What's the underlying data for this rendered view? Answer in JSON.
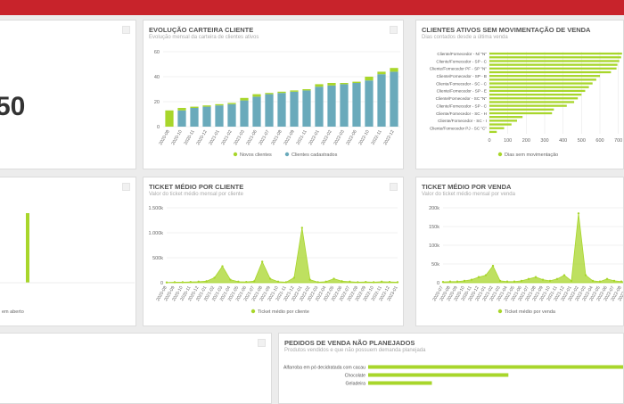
{
  "panels": {
    "kpi": {
      "value": 50
    },
    "carteira": {
      "title": "EVOLUÇÃO CARTEIRA CLIENTE",
      "subtitle": "Evolução mensal da carteira de clientes ativos",
      "chart_data": {
        "type": "stacked-bar",
        "categories": [
          "2020-08",
          "2020-10",
          "2020-11",
          "2020-12",
          "2021-01",
          "2021-02",
          "2021-03",
          "2021-06",
          "2021-07",
          "2021-08",
          "2021-09",
          "2021-11",
          "2022-01",
          "2022-02",
          "2022-03",
          "2022-06",
          "2022-10",
          "2022-11",
          "2022-12"
        ],
        "series": [
          {
            "name": "Novos clientes",
            "color": "#a8d62b",
            "values": [
              13,
              2,
              1,
              1,
              1,
              1,
              2,
              2,
              1,
              1,
              1,
              1,
              2,
              2,
              1,
              1,
              3,
              2,
              3
            ]
          },
          {
            "name": "Clientes cadastrados",
            "color": "#6aaabb",
            "values": [
              0,
              13,
              15,
              16,
              17,
              18,
              21,
              24,
              26,
              27,
              28,
              29,
              32,
              33,
              34,
              35,
              37,
              42,
              44
            ]
          }
        ],
        "ylim": [
          0,
          60
        ],
        "yticks": [
          0,
          20,
          40,
          60
        ],
        "grid": true
      }
    },
    "sem_mov": {
      "title": "CLIENTES ATIVOS SEM MOVIMENTAÇÃO DE VENDA",
      "subtitle": "Dias contados desde a última venda",
      "chart_data": {
        "type": "hbar",
        "categories": [
          "Cliente/Fornecedor - N/ \"N\"",
          null,
          "Cliente/Fornecedor - SP - C",
          null,
          "Cliente/Fornecedor PF - SP \"N\"",
          null,
          "Cliente/Fornecedor - SP - B",
          null,
          "Cliente/Fornecedor - SC - C",
          null,
          "Cliente/Fornecedor - SP - E",
          null,
          "Cliente/Fornecedor - SC \"N\"",
          null,
          "Cliente/Fornecedor - SP - C",
          null,
          "Cliente/Fornecedor - SC - H",
          null,
          "Cliente/Fornecedor - SC - I",
          null,
          "Cliente/Fornecedor PJ - SC \"C\"",
          null
        ],
        "series": [
          {
            "name": "Dias sem movimentação",
            "color": "#a8d62b",
            "values": [
              720,
              715,
              705,
              695,
              690,
              660,
              600,
              580,
              560,
              540,
              520,
              500,
              480,
              460,
              420,
              350,
              340,
              180,
              150,
              120,
              80,
              40
            ]
          }
        ],
        "xlim": [
          0,
          750
        ],
        "xticks": [
          0,
          100,
          200,
          300,
          400,
          500,
          600,
          700
        ],
        "grid": true
      }
    },
    "aberto": {
      "chart_data": {
        "type": "bar",
        "series": [
          {
            "name": "em aberto",
            "color": "#a8d62b",
            "values": [
              1
            ]
          }
        ]
      }
    },
    "ticket_cliente": {
      "title": "TICKET MÉDIO POR CLIENTE",
      "subtitle": "Valor do ticket médio mensal por cliente",
      "chart_data": {
        "type": "area",
        "categories": [
          "2020-08",
          "2020-09",
          "2020-10",
          "2020-11",
          "2020-12",
          "2021-01",
          "2021-02",
          "2021-03",
          "2021-04",
          "2021-05",
          "2021-06",
          "2021-07",
          "2021-08",
          "2021-09",
          "2021-10",
          "2021-11",
          "2021-12",
          "2022-01",
          "2022-02",
          "2022-03",
          "2022-04",
          "2022-05",
          "2022-06",
          "2022-07",
          "2022-08",
          "2022-09",
          "2022-10",
          "2022-11",
          "2022-12",
          "2023-01"
        ],
        "series": [
          {
            "name": "Ticket médio por cliente",
            "color": "#a8d62b",
            "values": [
              5000,
              10000,
              10000,
              15000,
              20000,
              30000,
              100000,
              330000,
              60000,
              20000,
              15000,
              30000,
              420000,
              80000,
              20000,
              10000,
              100000,
              1100000,
              60000,
              10000,
              20000,
              80000,
              30000,
              20000,
              10000,
              15000,
              10000,
              20000,
              15000,
              10000
            ]
          }
        ],
        "ylim": [
          0,
          1500000
        ],
        "yticks": [
          0,
          {
            "value": 500000,
            "label": "500k"
          },
          {
            "value": 1000000,
            "label": "1.000k"
          },
          {
            "value": 1500000,
            "label": "1.500k"
          }
        ],
        "grid": true
      }
    },
    "ticket_venda": {
      "title": "TICKET MÉDIO POR VENDA",
      "subtitle": "Valor do ticket médio mensal por venda",
      "chart_data": {
        "type": "area",
        "categories": [
          "2020-07",
          "2020-08",
          "2020-09",
          "2020-10",
          "2020-11",
          "2020-12",
          "2021-01",
          "2021-02",
          "2021-03",
          "2021-04",
          "2021-05",
          "2021-06",
          "2021-07",
          "2021-08",
          "2021-09",
          "2021-10",
          "2021-11",
          "2021-12",
          "2022-01",
          "2022-02",
          "2022-03",
          "2022-04",
          "2022-05",
          "2022-06",
          "2022-07",
          "2022-08",
          "2022-09",
          "2022-10",
          "2022-11",
          "2022-12"
        ],
        "series": [
          {
            "name": "Ticket médio por venda",
            "color": "#a8d62b",
            "values": [
              2000,
              3000,
              3000,
              5000,
              8000,
              15000,
              20000,
              45000,
              5000,
              3000,
              3000,
              5000,
              10000,
              15000,
              8000,
              5000,
              10000,
              20000,
              5000,
              185000,
              20000,
              5000,
              3000,
              10000,
              5000,
              3000,
              2000,
              3000,
              5000,
              2000
            ]
          }
        ],
        "ylim": [
          0,
          200000
        ],
        "yticks": [
          0,
          {
            "value": 50000,
            "label": "50k"
          },
          {
            "value": 100000,
            "label": "100k"
          },
          {
            "value": 150000,
            "label": "150k"
          },
          {
            "value": 200000,
            "label": "200k"
          }
        ],
        "grid": true
      }
    },
    "pedidos": {
      "title": "PEDIDOS DE VENDA NÃO PLANEJADOS",
      "subtitle": "Produtos vendidos e que não possuem demanda planejada",
      "chart_data": {
        "type": "hbar",
        "categories": [
          "Alfarroba em pó decidratada com cacau",
          "Chocolate",
          "Geladeira"
        ],
        "series": [
          {
            "color": "#a8d62b",
            "values": [
              100,
              55,
              25
            ]
          }
        ]
      }
    }
  }
}
